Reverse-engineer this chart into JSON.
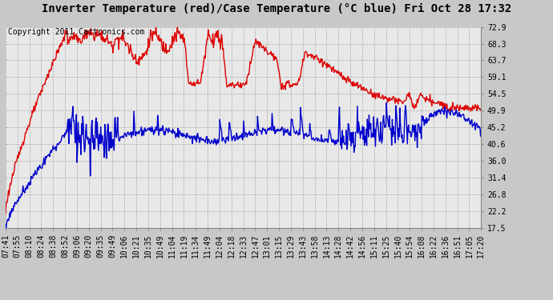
{
  "title": "Inverter Temperature (red)/Case Temperature (°C blue) Fri Oct 28 17:32",
  "copyright": "Copyright 2011 Cartronics.com",
  "background_color": "#c8c8c8",
  "plot_background": "#e8e8e8",
  "grid_color": "#aaaaaa",
  "y_ticks": [
    17.5,
    22.2,
    26.8,
    31.4,
    36.0,
    40.6,
    45.2,
    49.9,
    54.5,
    59.1,
    63.7,
    68.3,
    72.9
  ],
  "ylim": [
    17.5,
    72.9
  ],
  "x_labels": [
    "07:41",
    "07:55",
    "08:10",
    "08:24",
    "08:38",
    "08:52",
    "09:06",
    "09:20",
    "09:35",
    "09:49",
    "10:06",
    "10:21",
    "10:35",
    "10:49",
    "11:04",
    "11:19",
    "11:34",
    "11:49",
    "12:04",
    "12:18",
    "12:33",
    "12:47",
    "13:01",
    "13:15",
    "13:29",
    "13:43",
    "13:58",
    "14:13",
    "14:28",
    "14:42",
    "14:56",
    "15:11",
    "15:25",
    "15:40",
    "15:54",
    "16:08",
    "16:22",
    "16:36",
    "16:51",
    "17:05",
    "17:20"
  ],
  "red_color": "#dd0000",
  "blue_color": "#0000cc",
  "line_width": 1.0,
  "title_fontsize": 10,
  "tick_fontsize": 7,
  "copyright_fontsize": 7
}
